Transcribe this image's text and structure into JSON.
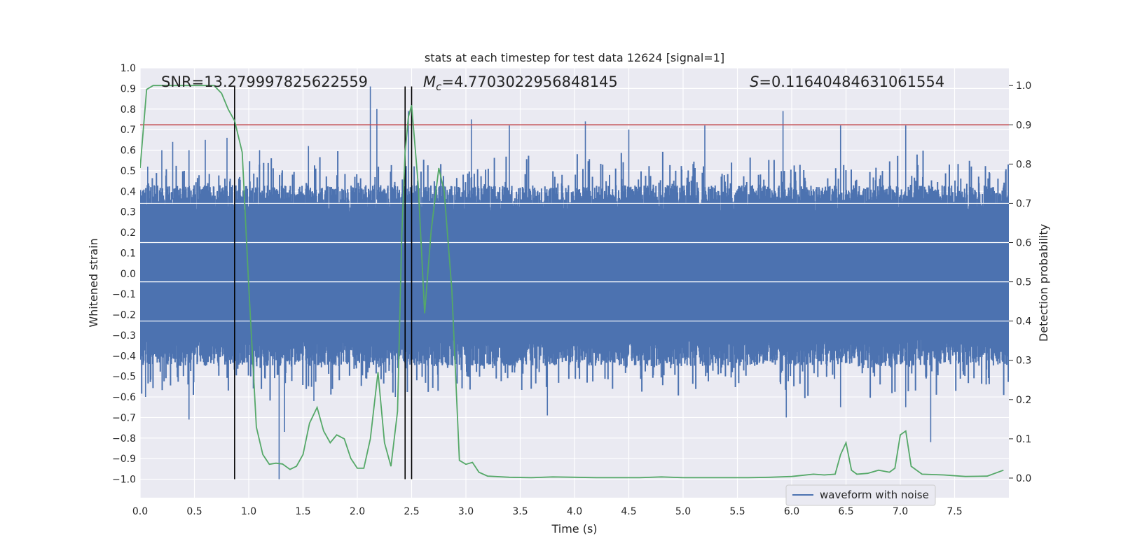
{
  "chart_data": {
    "type": "line",
    "title": "stats at each timestep for test data 12624 [signal=1]",
    "xlabel": "Time (s)",
    "ylabel_left": "Whitened strain",
    "ylabel_right": "Detection probability",
    "xlim": [
      0.0,
      8.0
    ],
    "ylim_left": [
      -1.09,
      1.0
    ],
    "ylim_right": [
      -0.05,
      1.045
    ],
    "x_ticks": [
      "0.0",
      "0.5",
      "1.0",
      "1.5",
      "2.0",
      "2.5",
      "3.0",
      "3.5",
      "4.0",
      "4.5",
      "5.0",
      "5.5",
      "6.0",
      "6.5",
      "7.0",
      "7.5"
    ],
    "y_ticks_left": [
      "1.0",
      "0.9",
      "0.8",
      "0.7",
      "0.6",
      "0.5",
      "0.4",
      "0.3",
      "0.2",
      "0.1",
      "0.0",
      "-0.1",
      "-0.2",
      "-0.3",
      "-0.4",
      "-0.5",
      "-0.6",
      "-0.7",
      "-0.8",
      "-0.9",
      "-1.0"
    ],
    "y_ticks_right": [
      "1.0",
      "0.9",
      "0.8",
      "0.7",
      "0.6",
      "0.5",
      "0.4",
      "0.3",
      "0.2",
      "0.1",
      "0.0"
    ],
    "annotations": {
      "snr": "SNR=13.279997825622559",
      "mc_symbol": "M",
      "mc_sub": "c",
      "mc_value": "=4.7703022956848145",
      "s_symbol": "S",
      "s_value": "=0.11640484631061554"
    },
    "threshold": {
      "value": 0.9,
      "axis": "right",
      "color": "#c44e52"
    },
    "vlines": [
      0.87,
      2.44,
      2.5
    ],
    "vline_range_left": [
      -1.0,
      0.91
    ],
    "series": [
      {
        "name": "waveform with noise",
        "axis": "left",
        "color": "#4c72b0",
        "envelope_base_upper": 0.36,
        "envelope_base_lower": -0.38,
        "spikes": [
          {
            "x": 0.07,
            "y": 0.52
          },
          {
            "x": 0.2,
            "y": 0.6
          },
          {
            "x": 0.3,
            "y": 0.64
          },
          {
            "x": 0.45,
            "y": 0.6
          },
          {
            "x": 0.6,
            "y": 0.65
          },
          {
            "x": 0.8,
            "y": 0.66
          },
          {
            "x": 1.1,
            "y": 0.6
          },
          {
            "x": 1.55,
            "y": 0.62
          },
          {
            "x": 2.12,
            "y": 0.91
          },
          {
            "x": 2.18,
            "y": 0.8
          },
          {
            "x": 2.47,
            "y": 0.79
          },
          {
            "x": 3.05,
            "y": 0.75
          },
          {
            "x": 3.4,
            "y": 0.72
          },
          {
            "x": 4.1,
            "y": 0.74
          },
          {
            "x": 4.5,
            "y": 0.7
          },
          {
            "x": 5.2,
            "y": 0.72
          },
          {
            "x": 5.92,
            "y": 0.79
          },
          {
            "x": 6.45,
            "y": 0.72
          },
          {
            "x": 7.05,
            "y": 0.72
          },
          {
            "x": 0.45,
            "y": -0.71
          },
          {
            "x": 0.05,
            "y": -0.6
          },
          {
            "x": 1.28,
            "y": -1.0
          },
          {
            "x": 1.33,
            "y": -0.77
          },
          {
            "x": 1.6,
            "y": -0.62
          },
          {
            "x": 2.35,
            "y": -0.6
          },
          {
            "x": 3.75,
            "y": -0.69
          },
          {
            "x": 5.95,
            "y": -0.7
          },
          {
            "x": 6.45,
            "y": -0.65
          },
          {
            "x": 7.05,
            "y": -0.65
          },
          {
            "x": 7.28,
            "y": -0.82
          }
        ]
      },
      {
        "name": "detection probability",
        "axis": "right",
        "color": "#55a868",
        "x": [
          0.0,
          0.06,
          0.12,
          0.2,
          0.3,
          0.4,
          0.5,
          0.6,
          0.68,
          0.75,
          0.81,
          0.87,
          0.94,
          1.0,
          1.07,
          1.13,
          1.19,
          1.25,
          1.31,
          1.38,
          1.44,
          1.5,
          1.56,
          1.63,
          1.69,
          1.75,
          1.81,
          1.88,
          1.94,
          2.0,
          2.06,
          2.12,
          2.19,
          2.25,
          2.31,
          2.37,
          2.41,
          2.44,
          2.47,
          2.5,
          2.56,
          2.62,
          2.68,
          2.75,
          2.8,
          2.87,
          2.94,
          3.0,
          3.06,
          3.12,
          3.2,
          3.4,
          3.6,
          3.8,
          4.0,
          4.2,
          4.4,
          4.6,
          4.8,
          5.0,
          5.2,
          5.4,
          5.6,
          5.8,
          6.0,
          6.2,
          6.3,
          6.4,
          6.45,
          6.5,
          6.55,
          6.6,
          6.7,
          6.8,
          6.9,
          6.95,
          7.0,
          7.05,
          7.1,
          7.2,
          7.4,
          7.6,
          7.8,
          7.95
        ],
        "y": [
          0.79,
          0.99,
          1.0,
          1.0,
          1.0,
          1.0,
          1.0,
          1.0,
          1.0,
          0.98,
          0.94,
          0.91,
          0.83,
          0.49,
          0.13,
          0.06,
          0.035,
          0.038,
          0.036,
          0.022,
          0.03,
          0.06,
          0.14,
          0.18,
          0.12,
          0.09,
          0.11,
          0.1,
          0.05,
          0.025,
          0.025,
          0.1,
          0.27,
          0.09,
          0.03,
          0.17,
          0.62,
          0.83,
          0.92,
          0.95,
          0.75,
          0.42,
          0.63,
          0.79,
          0.73,
          0.48,
          0.045,
          0.035,
          0.04,
          0.015,
          0.005,
          0.002,
          0.001,
          0.003,
          0.002,
          0.001,
          0.001,
          0.001,
          0.003,
          0.001,
          0.001,
          0.001,
          0.001,
          0.002,
          0.004,
          0.01,
          0.008,
          0.01,
          0.06,
          0.09,
          0.02,
          0.01,
          0.012,
          0.02,
          0.015,
          0.025,
          0.11,
          0.12,
          0.03,
          0.01,
          0.008,
          0.004,
          0.005,
          0.02
        ]
      }
    ],
    "legend": {
      "label": "waveform with noise",
      "placement": "lower-right"
    }
  }
}
